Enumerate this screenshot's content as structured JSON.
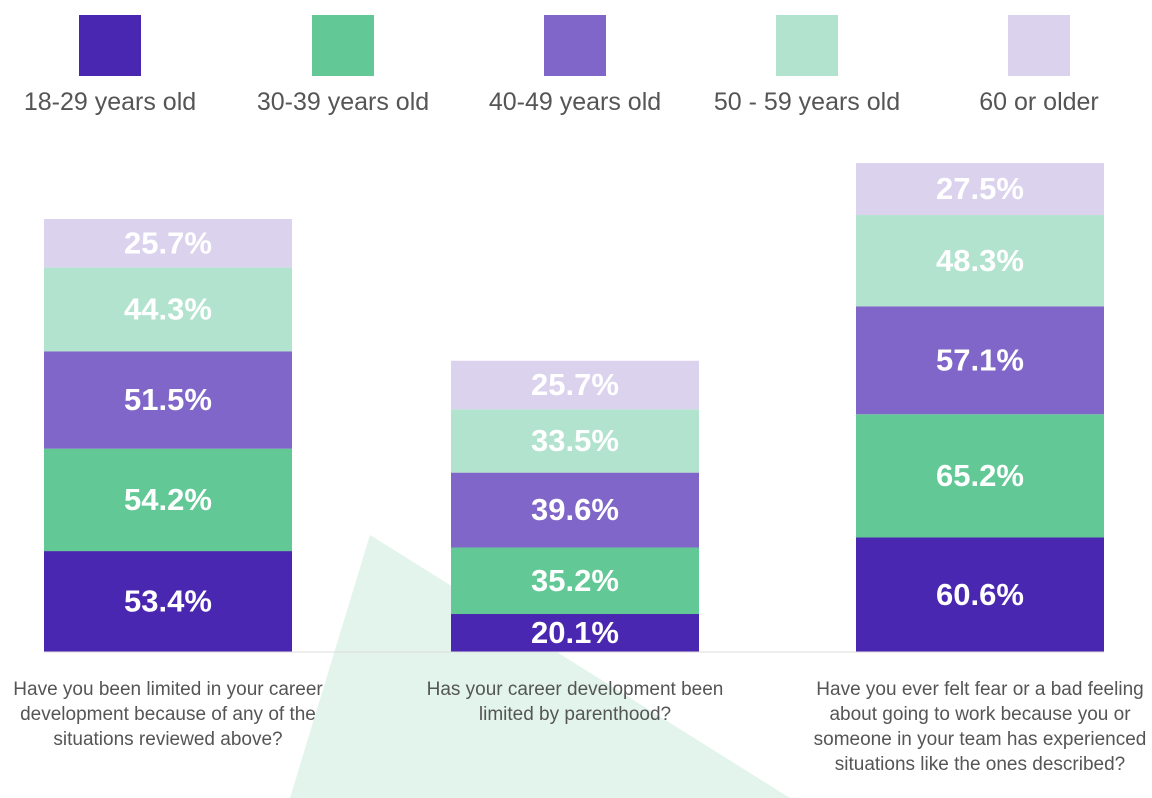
{
  "chart_data": {
    "type": "bar",
    "stacked": true,
    "categories": [
      "Have you been limited in your career development because of any of the situations reviewed above?",
      "Has your career development been limited by parenthood?",
      "Have you ever felt fear or a bad feeling about going to work because you or someone in your team has experienced situations like the ones described?"
    ],
    "series": [
      {
        "name": "18-29 years old",
        "color": "#4a27b0",
        "values": [
          53.4,
          20.1,
          60.6
        ],
        "value_labels": [
          "53.4%",
          "20.1%",
          "60.6%"
        ]
      },
      {
        "name": "30-39 years old",
        "color": "#62c896",
        "values": [
          54.2,
          35.2,
          65.2
        ],
        "value_labels": [
          "54.2%",
          "35.2%",
          "65.2%"
        ]
      },
      {
        "name": "40-49 years old",
        "color": "#8066c8",
        "values": [
          51.5,
          39.6,
          57.1
        ],
        "value_labels": [
          "51.5%",
          "39.6%",
          "57.1%"
        ]
      },
      {
        "name": "50 - 59 years old",
        "color": "#b2e3cf",
        "values": [
          44.3,
          33.5,
          48.3
        ],
        "value_labels": [
          "44.3%",
          "33.5%",
          "48.3%"
        ]
      },
      {
        "name": "60 or older",
        "color": "#dbd3ee",
        "values": [
          25.7,
          25.7,
          27.5
        ],
        "value_labels": [
          "25.7%",
          "25.7%",
          "27.5%"
        ]
      }
    ],
    "legend": "top"
  }
}
